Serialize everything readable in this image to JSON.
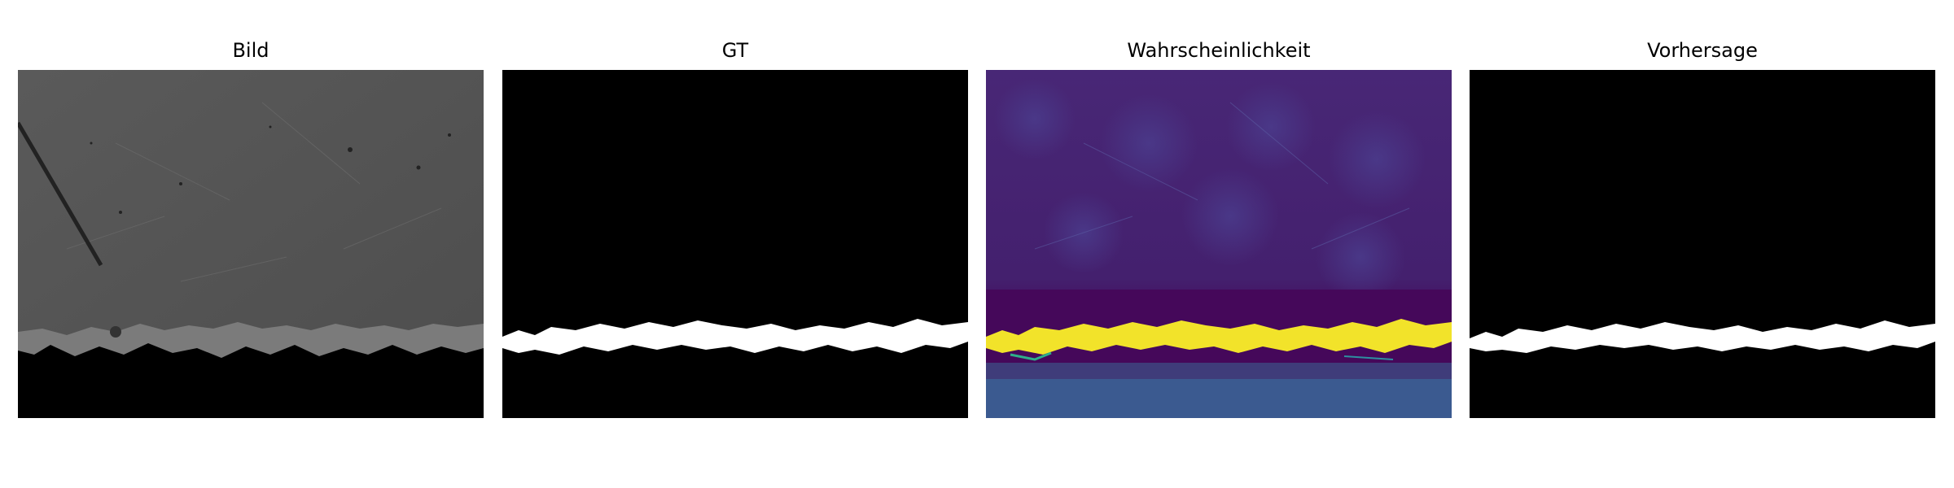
{
  "figure": {
    "panels": [
      {
        "title": "Bild"
      },
      {
        "title": "GT"
      },
      {
        "title": "Wahrscheinlichkeit"
      },
      {
        "title": "Vorhersage"
      }
    ]
  }
}
